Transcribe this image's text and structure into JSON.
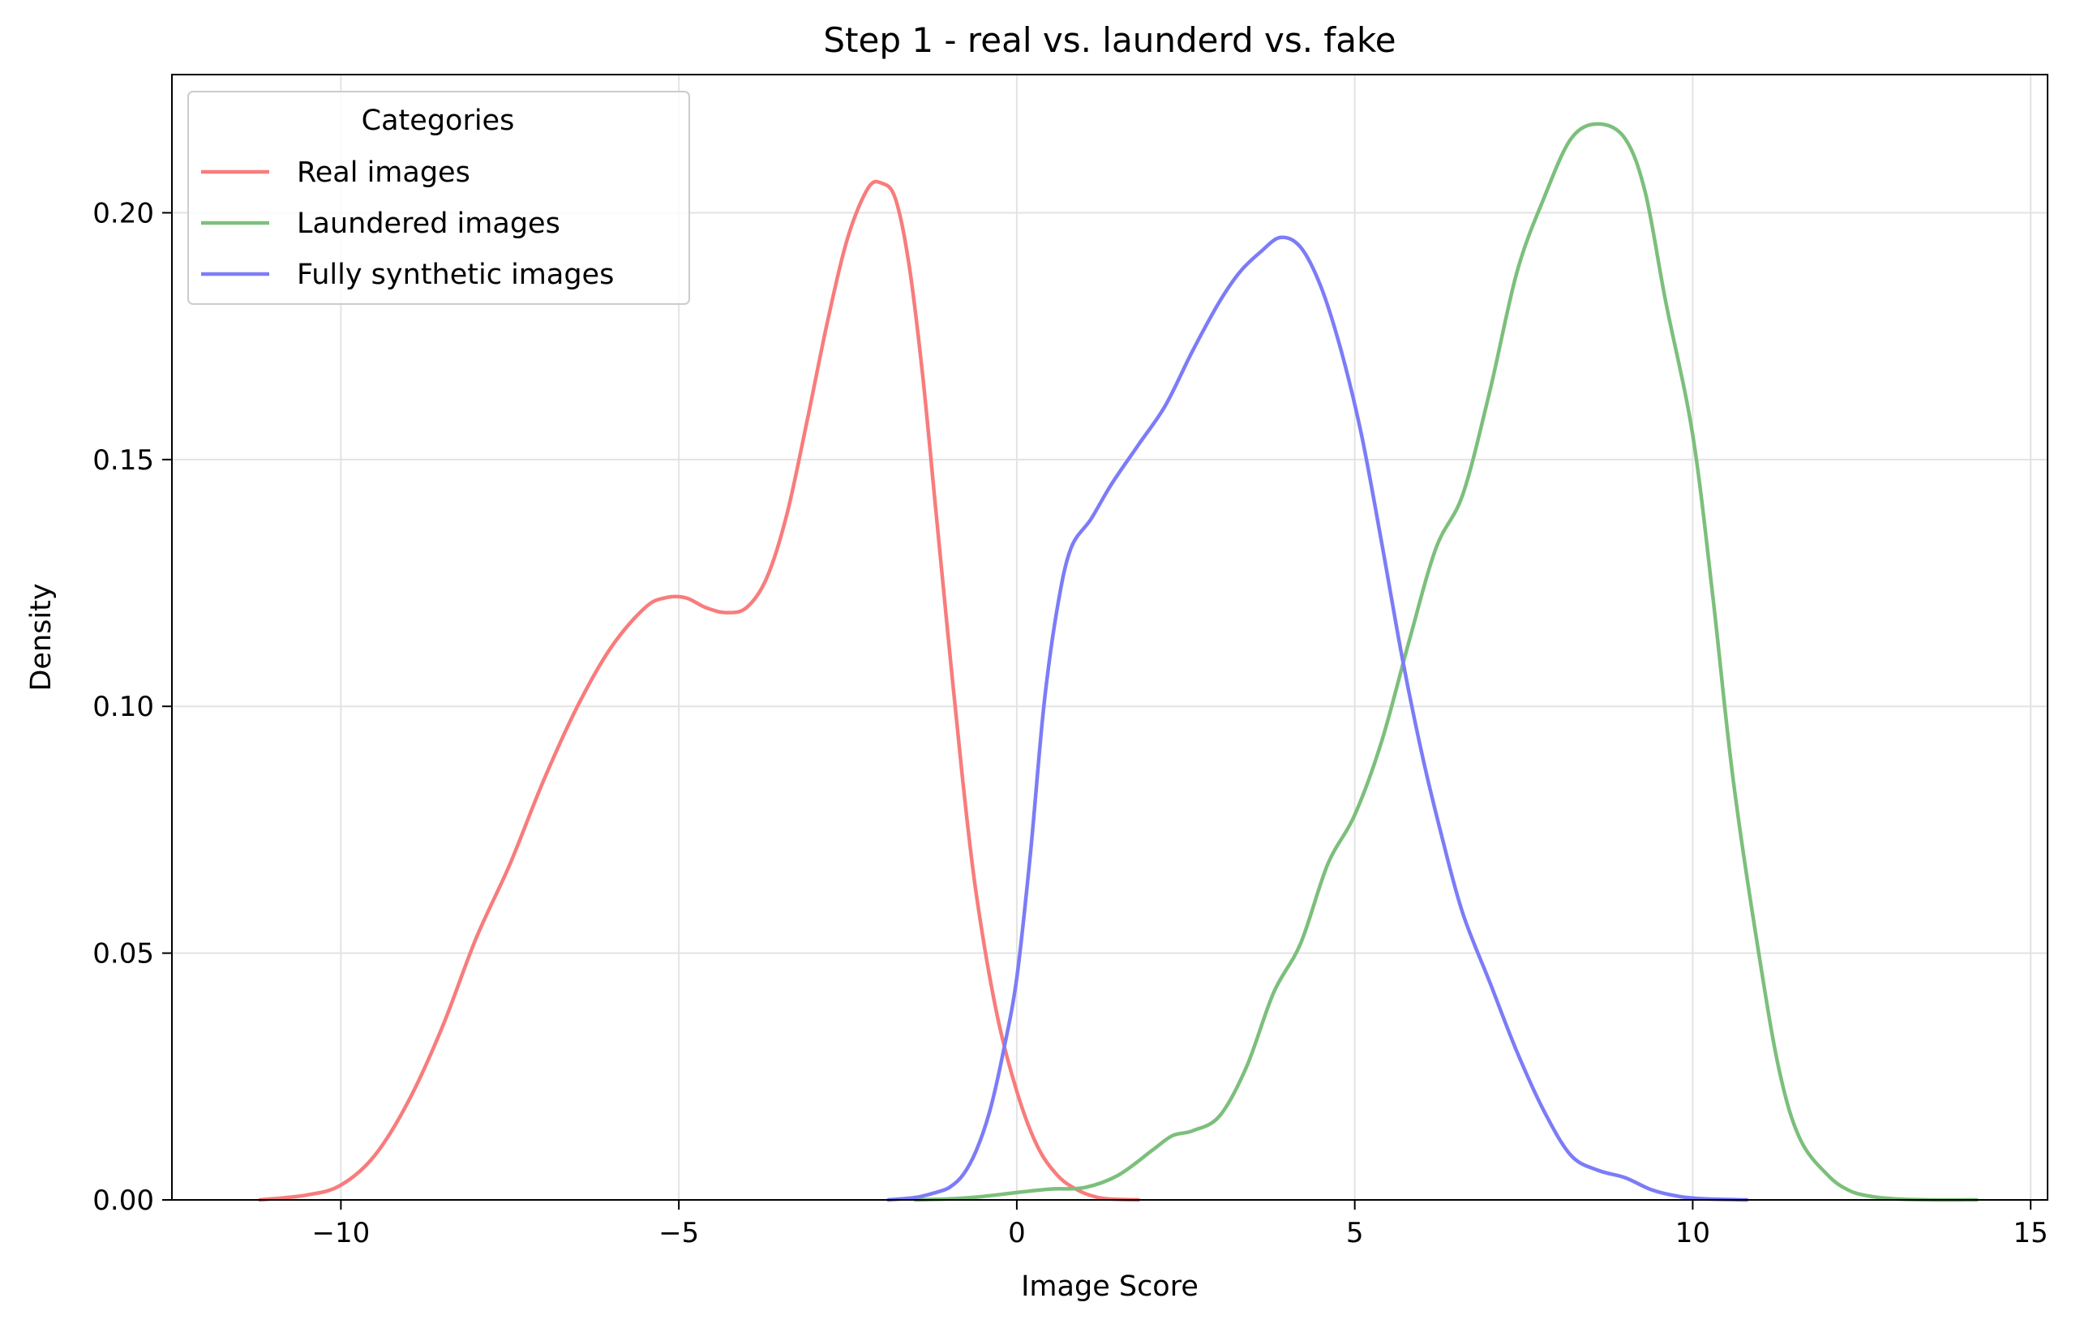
{
  "chart_data": {
    "type": "line",
    "title": "Step 1 - real vs. launderd vs. fake",
    "xlabel": "Image Score",
    "ylabel": "Density",
    "xlim": [
      -12.5,
      15.25
    ],
    "ylim": [
      0,
      0.228
    ],
    "xticks": [
      -10,
      -5,
      0,
      5,
      10,
      15
    ],
    "xtick_labels": [
      "−10",
      "−5",
      "0",
      "5",
      "10",
      "15"
    ],
    "yticks": [
      0,
      0.05,
      0.1,
      0.15,
      0.2
    ],
    "ytick_labels": [
      "0.00",
      "0.05",
      "0.10",
      "0.15",
      "0.20"
    ],
    "grid": true,
    "legend": {
      "title": "Categories",
      "placement": "top-left"
    },
    "series": [
      {
        "name": "Real images",
        "color": "#f87c7c",
        "x": [
          -11.2,
          -10.5,
          -10.0,
          -9.5,
          -9.0,
          -8.5,
          -8.0,
          -7.5,
          -7.0,
          -6.5,
          -6.0,
          -5.5,
          -5.2,
          -4.9,
          -4.6,
          -4.3,
          -4.0,
          -3.7,
          -3.4,
          -3.1,
          -2.8,
          -2.5,
          -2.2,
          -2.0,
          -1.8,
          -1.6,
          -1.4,
          -1.2,
          -1.0,
          -0.8,
          -0.6,
          -0.3,
          0.0,
          0.3,
          0.6,
          0.9,
          1.2,
          1.5,
          1.8
        ],
        "y": [
          0.0,
          0.001,
          0.003,
          0.009,
          0.02,
          0.035,
          0.053,
          0.068,
          0.085,
          0.1,
          0.112,
          0.12,
          0.122,
          0.122,
          0.12,
          0.119,
          0.12,
          0.126,
          0.139,
          0.158,
          0.178,
          0.195,
          0.205,
          0.206,
          0.203,
          0.19,
          0.168,
          0.14,
          0.112,
          0.085,
          0.062,
          0.038,
          0.022,
          0.011,
          0.005,
          0.002,
          0.0005,
          0.0001,
          0.0
        ]
      },
      {
        "name": "Laundered images",
        "color": "#7cbf7c",
        "x": [
          -1.5,
          -1.0,
          -0.5,
          0.0,
          0.5,
          1.0,
          1.5,
          2.0,
          2.3,
          2.6,
          3.0,
          3.4,
          3.8,
          4.2,
          4.6,
          5.0,
          5.4,
          5.8,
          6.2,
          6.6,
          7.0,
          7.4,
          7.8,
          8.2,
          8.6,
          9.0,
          9.3,
          9.6,
          10.0,
          10.3,
          10.6,
          11.0,
          11.3,
          11.6,
          12.0,
          12.3,
          12.6,
          13.0,
          13.5,
          14.2
        ],
        "y": [
          0.0,
          0.0002,
          0.0007,
          0.0015,
          0.0022,
          0.0025,
          0.005,
          0.01,
          0.013,
          0.014,
          0.017,
          0.027,
          0.042,
          0.052,
          0.068,
          0.078,
          0.093,
          0.113,
          0.132,
          0.143,
          0.164,
          0.188,
          0.203,
          0.215,
          0.218,
          0.215,
          0.204,
          0.182,
          0.155,
          0.122,
          0.085,
          0.048,
          0.025,
          0.012,
          0.005,
          0.002,
          0.0008,
          0.0002,
          0.0,
          0.0
        ]
      },
      {
        "name": "Fully synthetic images",
        "color": "#7c7cf8",
        "x": [
          -1.9,
          -1.5,
          -1.2,
          -1.0,
          -0.8,
          -0.6,
          -0.4,
          -0.2,
          0.0,
          0.2,
          0.4,
          0.6,
          0.8,
          1.1,
          1.4,
          1.8,
          2.2,
          2.6,
          3.0,
          3.3,
          3.6,
          3.9,
          4.2,
          4.5,
          4.8,
          5.1,
          5.4,
          5.7,
          6.0,
          6.3,
          6.6,
          7.0,
          7.4,
          7.8,
          8.2,
          8.6,
          9.0,
          9.4,
          9.8,
          10.2,
          10.8
        ],
        "y": [
          0.0,
          0.0005,
          0.0015,
          0.0025,
          0.005,
          0.01,
          0.018,
          0.03,
          0.045,
          0.07,
          0.1,
          0.12,
          0.132,
          0.138,
          0.145,
          0.153,
          0.161,
          0.172,
          0.182,
          0.188,
          0.192,
          0.195,
          0.193,
          0.185,
          0.172,
          0.155,
          0.133,
          0.11,
          0.09,
          0.073,
          0.058,
          0.044,
          0.03,
          0.018,
          0.009,
          0.006,
          0.0045,
          0.002,
          0.0007,
          0.0002,
          0.0
        ]
      }
    ]
  }
}
